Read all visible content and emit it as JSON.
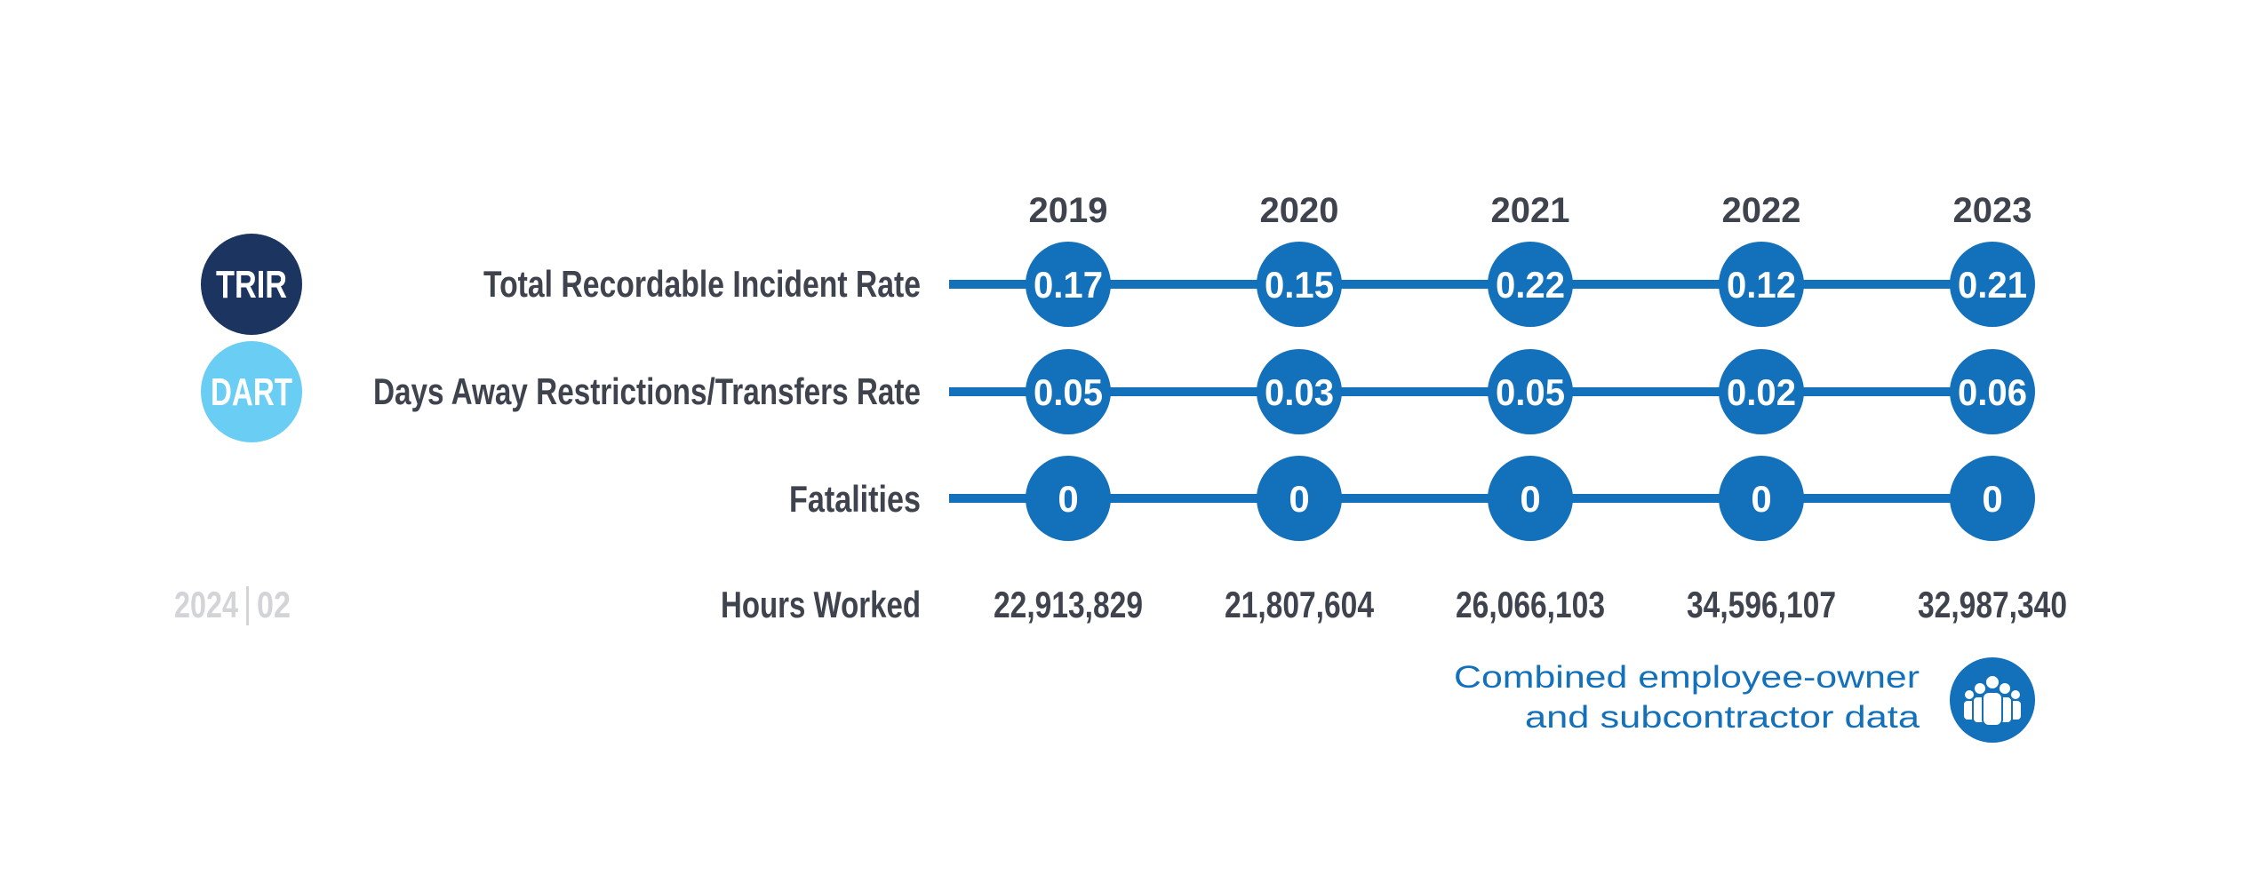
{
  "badges": {
    "trir": "TRIR",
    "dart": "DART"
  },
  "footer_code": {
    "year": "2024",
    "number": "02"
  },
  "note": {
    "line1": "Combined employee-owner",
    "line2": "and subcontractor data",
    "icon": "people-group-icon"
  },
  "colors": {
    "dark_navy": "#1b3460",
    "light_blue": "#6acdf4",
    "primary_blue": "#1370bb",
    "label_gray": "#3e434d",
    "code_gray": "#d2d4d7",
    "white": "#ffffff"
  },
  "chart_data": {
    "type": "table",
    "years": [
      "2019",
      "2020",
      "2021",
      "2022",
      "2023"
    ],
    "rows": [
      {
        "key": "trir",
        "label": "Total Recordable Incident Rate",
        "values": [
          "0.17",
          "0.15",
          "0.22",
          "0.12",
          "0.21"
        ]
      },
      {
        "key": "dart",
        "label": "Days Away Restrictions/Transfers Rate",
        "values": [
          "0.05",
          "0.03",
          "0.05",
          "0.02",
          "0.06"
        ]
      },
      {
        "key": "fatalities",
        "label": "Fatalities",
        "values": [
          "0",
          "0",
          "0",
          "0",
          "0"
        ]
      }
    ],
    "hours_worked": {
      "label": "Hours Worked",
      "values": [
        "22,913,829",
        "21,807,604",
        "26,066,103",
        "34,596,107",
        "32,987,340"
      ]
    }
  }
}
